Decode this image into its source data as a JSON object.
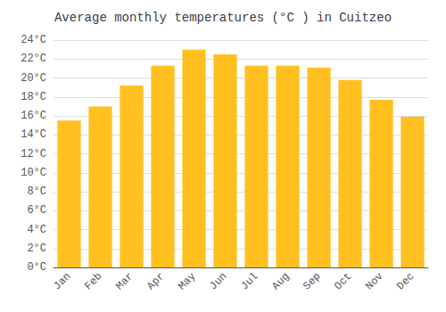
{
  "chart_data": {
    "type": "bar",
    "title": "Average monthly temperatures (°C ) in Cuitzeo",
    "categories": [
      "Jan",
      "Feb",
      "Mar",
      "Apr",
      "May",
      "Jun",
      "Jul",
      "Aug",
      "Sep",
      "Oct",
      "Nov",
      "Dec"
    ],
    "values": [
      15.5,
      17.0,
      19.2,
      21.3,
      23.0,
      22.5,
      21.3,
      21.3,
      21.1,
      19.8,
      17.7,
      15.9
    ],
    "color": "#FFC020",
    "ylim": [
      0,
      24
    ],
    "yticks": [
      {
        "value": 0,
        "label": "0°C"
      },
      {
        "value": 2,
        "label": "2°C"
      },
      {
        "value": 4,
        "label": "4°C"
      },
      {
        "value": 6,
        "label": "6°C"
      },
      {
        "value": 8,
        "label": "8°C"
      },
      {
        "value": 10,
        "label": "10°C"
      },
      {
        "value": 12,
        "label": "12°C"
      },
      {
        "value": 14,
        "label": "14°C"
      },
      {
        "value": 16,
        "label": "16°C"
      },
      {
        "value": 18,
        "label": "18°C"
      },
      {
        "value": 20,
        "label": "20°C"
      },
      {
        "value": 22,
        "label": "22°C"
      },
      {
        "value": 24,
        "label": "24°C"
      }
    ],
    "grid": true
  }
}
